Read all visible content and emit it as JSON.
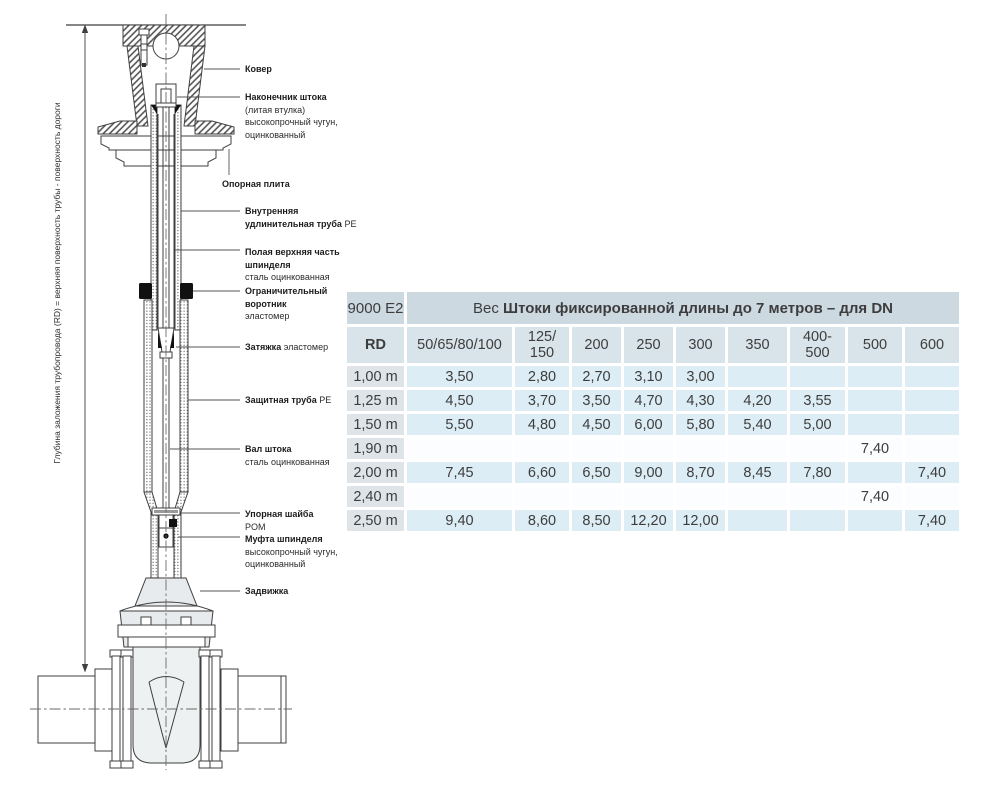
{
  "diagram": {
    "depth_note": "Глубина заложения трубопровода (RD) = верхняя поверхность трубы - поверхность дороги",
    "labels": {
      "cover": [
        {
          "b": "Ковер",
          "r": ""
        }
      ],
      "stem_tip": [
        {
          "b": "Наконечник штока",
          "r": ""
        },
        {
          "b": "",
          "r": "(литая втулка)"
        },
        {
          "b": "",
          "r": "высокопрочный чугун,"
        },
        {
          "b": "",
          "r": "оцинкованный"
        }
      ],
      "base_plate": [
        {
          "b": "Опорная плита",
          "r": ""
        }
      ],
      "inner_tube": [
        {
          "b": "Внутренняя",
          "r": ""
        },
        {
          "b": "удлинительная труба",
          "r": " PE"
        }
      ],
      "hollow_top": [
        {
          "b": "Полая верхняя часть",
          "r": ""
        },
        {
          "b": "шпинделя",
          "r": ""
        },
        {
          "b": "",
          "r": "сталь оцинкованная"
        }
      ],
      "collar": [
        {
          "b": "Ограничительный",
          "r": ""
        },
        {
          "b": "воротник",
          "r": ""
        },
        {
          "b": "",
          "r": "эластомер"
        }
      ],
      "tightening": [
        {
          "b": "Затяжка",
          "r": " эластомер"
        }
      ],
      "protect_tube": [
        {
          "b": "Защитная труба",
          "r": " PE"
        }
      ],
      "stem_shaft": [
        {
          "b": "Вал штока",
          "r": ""
        },
        {
          "b": "",
          "r": "сталь оцинкованная"
        }
      ],
      "thrust_washer": [
        {
          "b": "Упорная шайба",
          "r": ""
        },
        {
          "b": "",
          "r": "POM"
        }
      ],
      "coupling": [
        {
          "b": "Муфта шпинделя",
          "r": ""
        },
        {
          "b": "",
          "r": "высокопрочный чугун,"
        },
        {
          "b": "",
          "r": "оцинкованный"
        }
      ],
      "valve": [
        {
          "b": "Задвижка",
          "r": ""
        }
      ]
    }
  },
  "table": {
    "model": "9000 E2",
    "title_prefix": "Вес ",
    "title_bold": "Штоки фиксированной длины до 7 метров – для DN",
    "col_headers": [
      "RD",
      "50/65/80/100",
      "125/\n150",
      "200",
      "250",
      "300",
      "350",
      "400-\n500",
      "500",
      "600"
    ],
    "rows": [
      {
        "rd": "1,00 m",
        "tinted": true,
        "cells": [
          "3,50",
          "2,80",
          "2,70",
          "3,10",
          "3,00",
          "",
          "",
          "",
          ""
        ]
      },
      {
        "rd": "1,25 m",
        "tinted": true,
        "cells": [
          "4,50",
          "3,70",
          "3,50",
          "4,70",
          "4,30",
          "4,20",
          "3,55",
          "",
          ""
        ]
      },
      {
        "rd": "1,50 m",
        "tinted": true,
        "cells": [
          "5,50",
          "4,80",
          "4,50",
          "6,00",
          "5,80",
          "5,40",
          "5,00",
          "",
          ""
        ]
      },
      {
        "rd": "1,90 m",
        "tinted": false,
        "cells": [
          "",
          "",
          "",
          "",
          "",
          "",
          "",
          "7,40",
          ""
        ]
      },
      {
        "rd": "2,00 m",
        "tinted": true,
        "cells": [
          "7,45",
          "6,60",
          "6,50",
          "9,00",
          "8,70",
          "8,45",
          "7,80",
          "",
          "7,40"
        ]
      },
      {
        "rd": "2,40 m",
        "tinted": false,
        "cells": [
          "",
          "",
          "",
          "",
          "",
          "",
          "",
          "7,40",
          ""
        ]
      },
      {
        "rd": "2,50 m",
        "tinted": true,
        "cells": [
          "9,40",
          "8,60",
          "8,50",
          "12,20",
          "12,00",
          "",
          "",
          "",
          "7,40"
        ]
      }
    ],
    "colors": {
      "header1": "#cdd9e1",
      "header2": "#d8e4ea",
      "rd_col": "#dee4e8",
      "tint": "#dcedf5",
      "plain": "#fbfdfe"
    }
  }
}
